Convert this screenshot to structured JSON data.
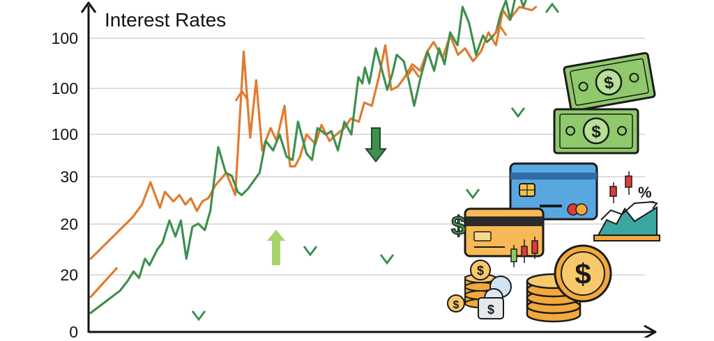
{
  "chart_data": {
    "type": "line",
    "title": "Interest Rates",
    "xlabel": "",
    "ylabel": "",
    "y_tick_labels": [
      "0",
      "20",
      "20",
      "30",
      "100",
      "100",
      "100"
    ],
    "grid": true,
    "legend": "none",
    "x_range": [
      0,
      100
    ],
    "y_range": [
      0,
      100
    ],
    "series": [
      {
        "color": "#e07b2e",
        "x": [
          0,
          8.4,
          10.3,
          12.0,
          13.9,
          14.9,
          16.6,
          17.8,
          19.0,
          20.1,
          21.3,
          22.4,
          23.6,
          25.0,
          27.2,
          29.0,
          30.7,
          32.0,
          33.2,
          34.4,
          36.1,
          37.3,
          38.9,
          40.0,
          41.0,
          42.0,
          43.3,
          45.1,
          46.3,
          47.9,
          49.3,
          50.9,
          52.2,
          53.8,
          54.9,
          56.4,
          57.8,
          59.1,
          60.3,
          61.6,
          63.0,
          64.5,
          66.1,
          67.5,
          68.8,
          70.6,
          72.1,
          73.7,
          75.1,
          76.7,
          78.3,
          79.8,
          81.3,
          82.7,
          84.0,
          86.0,
          88.5,
          89.3
        ],
        "y": [
          21,
          34,
          38,
          45,
          37,
          42,
          39,
          41,
          38,
          40,
          36,
          39,
          40,
          44,
          48,
          41,
          86,
          59,
          77,
          55,
          62,
          58,
          69,
          50,
          50,
          53,
          60,
          57,
          63,
          58,
          60,
          62,
          65,
          64,
          70,
          69,
          78,
          88,
          74,
          75,
          78,
          82,
          80,
          86,
          89,
          84,
          91,
          85,
          87,
          83,
          86,
          92,
          88,
          99,
          96,
          100,
          99,
          100
        ]
      },
      {
        "color": "#e07b2e",
        "x": [
          0,
          5.2
        ],
        "y": [
          9,
          18
        ]
      },
      {
        "color": "#3f8f4f",
        "x": [
          0,
          5.9,
          7.4,
          8.6,
          9.7,
          10.9,
          11.8,
          13.4,
          14.4,
          15.8,
          17.0,
          18.1,
          19.2,
          20.4,
          21.6,
          22.9,
          24.0,
          25.6,
          27.1,
          28.3,
          29.5,
          30.3,
          31.6,
          32.5,
          33.9,
          35.1,
          36.6,
          37.9,
          39.3,
          40.5,
          41.6,
          43.3,
          44.4,
          45.5,
          47.2,
          48.3,
          49.6,
          50.9,
          52.3,
          53.7,
          54.5,
          55.0,
          55.9,
          57.2,
          58.3,
          59.5,
          60.5,
          61.4,
          62.8,
          63.8,
          64.9,
          66.2,
          67.6,
          68.9,
          69.9,
          71.0,
          72.1,
          73.6,
          74.6,
          75.9,
          77.3,
          78.7,
          79.5,
          80.2,
          81.3,
          82.3,
          83.3,
          84.2,
          85.6,
          86.8,
          88.2
        ],
        "y": [
          4,
          11,
          14,
          17,
          15,
          21,
          19,
          24,
          26,
          33,
          28,
          33,
          21,
          31,
          32,
          30,
          36,
          56,
          48,
          47,
          42,
          41,
          43,
          45,
          48,
          58,
          55,
          60,
          53,
          52,
          64,
          54,
          52,
          62,
          60,
          61,
          55,
          64,
          60,
          78,
          76,
          81,
          76,
          87,
          81,
          74,
          79,
          85,
          83,
          77,
          69,
          78,
          86,
          80,
          87,
          82,
          92,
          88,
          100,
          95,
          85,
          91,
          89,
          90,
          92,
          98,
          102,
          96,
          106,
          100,
          106
        ]
      }
    ],
    "annotations": [
      {
        "label": "arrow-up-green",
        "color": "#a7d36b"
      },
      {
        "label": "arrow-down-green",
        "color": "#3f8f4f"
      }
    ]
  },
  "decorations": [
    "dollar-bills-icon",
    "credit-cards-icon",
    "coin-stacks-icon",
    "candlestick-chart-icon",
    "percent-icon",
    "dollar-sign-icon"
  ]
}
